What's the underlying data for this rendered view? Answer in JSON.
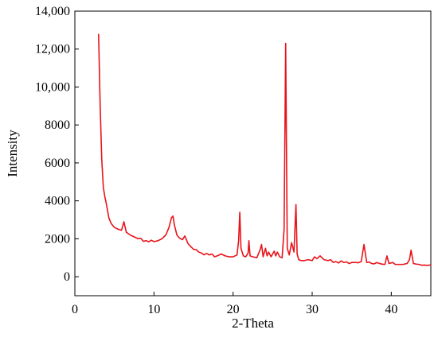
{
  "chart_data": {
    "type": "line",
    "title": "",
    "xlabel": "2-Theta",
    "ylabel": "Intensity",
    "xlim": [
      0,
      45
    ],
    "ylim": [
      -1000,
      14000
    ],
    "x_ticks": [
      0,
      10,
      20,
      30,
      40
    ],
    "x_tick_labels": [
      "0",
      "10",
      "20",
      "30",
      "40"
    ],
    "y_ticks": [
      0,
      2000,
      4000,
      6000,
      8000,
      10000,
      12000,
      14000
    ],
    "y_tick_labels": [
      "0",
      "2000",
      "4000",
      "6000",
      "8000",
      "10,000",
      "12,000",
      "14,000"
    ],
    "grid": false,
    "legend": "none",
    "series": [
      {
        "color": "#e8141b",
        "x": [
          3.0,
          3.2,
          3.4,
          3.6,
          3.8,
          4.0,
          4.3,
          4.6,
          5.0,
          5.5,
          5.9,
          6.2,
          6.5,
          7.0,
          7.5,
          8.0,
          9.0,
          10.0,
          10.5,
          11.0,
          11.5,
          11.9,
          12.2,
          12.4,
          12.6,
          12.9,
          13.2,
          13.6,
          13.9,
          14.3,
          15.0,
          16.0,
          17.0,
          18.0,
          18.5,
          19.0,
          19.5,
          20.0,
          20.5,
          20.7,
          20.85,
          21.0,
          21.3,
          21.6,
          21.9,
          22.0,
          22.15,
          22.5,
          23.0,
          23.4,
          23.6,
          23.8,
          24.1,
          24.3,
          24.5,
          24.8,
          25.2,
          25.4,
          25.6,
          25.9,
          26.2,
          26.45,
          26.65,
          26.85,
          27.1,
          27.4,
          27.7,
          27.95,
          28.1,
          28.3,
          28.6,
          29.0,
          29.5,
          30.0,
          30.3,
          30.6,
          31.0,
          31.5,
          32.0,
          33.0,
          34.0,
          35.0,
          35.5,
          36.2,
          36.55,
          36.9,
          37.5,
          38.5,
          39.2,
          39.45,
          39.7,
          40.2,
          40.5,
          41.0,
          41.5,
          42.0,
          42.3,
          42.5,
          42.8,
          43.5,
          44.5,
          45.0
        ],
        "y": [
          12800,
          9000,
          6200,
          4700,
          4200,
          3800,
          3100,
          2800,
          2600,
          2500,
          2450,
          2900,
          2350,
          2200,
          2100,
          2000,
          1900,
          1850,
          1900,
          2000,
          2200,
          2600,
          3100,
          3200,
          2700,
          2200,
          2050,
          1950,
          2150,
          1750,
          1450,
          1250,
          1150,
          1100,
          1200,
          1100,
          1050,
          1050,
          1150,
          1900,
          3400,
          1500,
          1100,
          1050,
          1250,
          1900,
          1100,
          1050,
          1000,
          1400,
          1700,
          1050,
          1500,
          1100,
          1300,
          1050,
          1350,
          1100,
          1300,
          1050,
          1000,
          2500,
          12300,
          1500,
          1150,
          1800,
          1300,
          3800,
          1200,
          900,
          850,
          850,
          900,
          850,
          1050,
          950,
          1100,
          900,
          850,
          800,
          750,
          750,
          750,
          800,
          1700,
          750,
          700,
          700,
          650,
          1100,
          700,
          750,
          650,
          650,
          650,
          700,
          900,
          1400,
          700,
          650,
          600,
          620
        ]
      }
    ]
  }
}
